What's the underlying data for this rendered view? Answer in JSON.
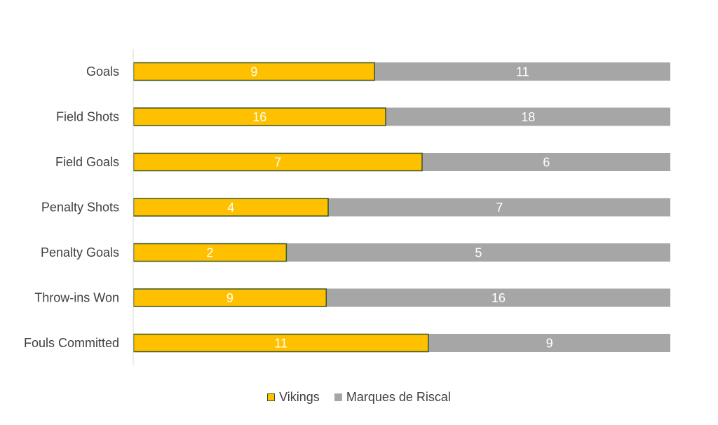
{
  "chart_data": {
    "type": "bar",
    "orientation": "horizontal",
    "stacking": "percent",
    "categories": [
      "Goals",
      "Field Shots",
      "Field Goals",
      "Penalty Shots",
      "Penalty Goals",
      "Throw-ins Won",
      "Fouls Committed"
    ],
    "series": [
      {
        "name": "Vikings",
        "values": [
          9,
          16,
          7,
          4,
          2,
          9,
          11
        ],
        "color": "#FFC000",
        "border": "#385723"
      },
      {
        "name": "Marques de Riscal",
        "values": [
          11,
          18,
          6,
          7,
          5,
          16,
          9
        ],
        "color": "#A6A6A6"
      }
    ],
    "legend": "bottom",
    "grid": false
  }
}
